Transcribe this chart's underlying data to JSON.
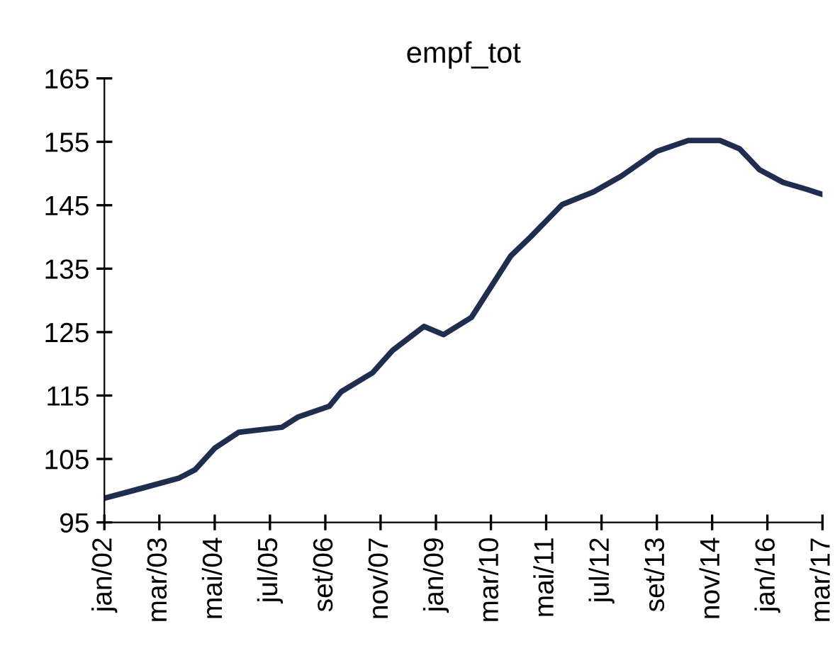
{
  "chart_data": {
    "type": "line",
    "title": "empf_tot",
    "x": [
      "2002-01",
      "2002-10",
      "2003-08",
      "2003-12",
      "2004-05",
      "2004-11",
      "2005-10",
      "2006-02",
      "2006-10",
      "2007-01",
      "2007-09",
      "2008-02",
      "2008-10",
      "2009-03",
      "2009-10",
      "2010-08",
      "2011-01",
      "2011-09",
      "2012-05",
      "2012-12",
      "2013-09",
      "2014-05",
      "2015-01",
      "2015-06",
      "2015-11",
      "2016-05",
      "2016-11",
      "2017-03"
    ],
    "series": [
      {
        "color": "#1f2d4f",
        "values": [
          98.8,
          100.3,
          102.0,
          103.3,
          106.7,
          109.2,
          110.0,
          111.6,
          113.3,
          115.6,
          118.6,
          122.1,
          125.9,
          124.6,
          127.3,
          137.0,
          140.0,
          145.1,
          147.1,
          149.6,
          153.5,
          155.2,
          155.2,
          153.9,
          150.6,
          148.6,
          147.5,
          146.7
        ]
      }
    ],
    "xlim": [
      "2002-01",
      "2017-03"
    ],
    "xticks": [
      {
        "value": "2002-01",
        "label": "jan/02"
      },
      {
        "value": "2003-03",
        "label": "mar/03"
      },
      {
        "value": "2004-05",
        "label": "mai/04"
      },
      {
        "value": "2005-07",
        "label": "jul/05"
      },
      {
        "value": "2006-09",
        "label": "set/06"
      },
      {
        "value": "2007-11",
        "label": "nov/07"
      },
      {
        "value": "2009-01",
        "label": "jan/09"
      },
      {
        "value": "2010-03",
        "label": "mar/10"
      },
      {
        "value": "2011-05",
        "label": "mai/11"
      },
      {
        "value": "2012-07",
        "label": "jul/12"
      },
      {
        "value": "2013-09",
        "label": "set/13"
      },
      {
        "value": "2014-11",
        "label": "nov/14"
      },
      {
        "value": "2016-01",
        "label": "jan/16"
      },
      {
        "value": "2017-03",
        "label": "mar/17"
      }
    ],
    "ylim": [
      95,
      165
    ],
    "yticks": [
      95,
      105,
      115,
      125,
      135,
      145,
      155,
      165
    ],
    "grid": false,
    "legend": false
  }
}
